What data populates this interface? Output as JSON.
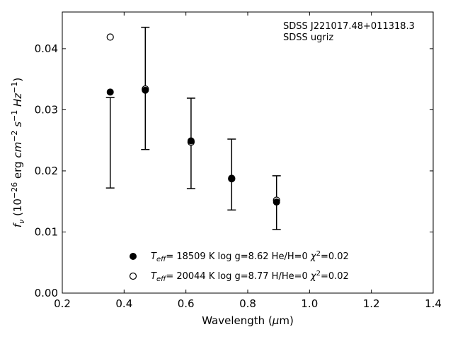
{
  "chart_data": {
    "type": "scatter",
    "xlabel": "Wavelength (μm)",
    "ylabel": "fν (10⁻²⁶ erg cm⁻² s⁻¹ Hz⁻¹)",
    "xlim": [
      0.2,
      1.4
    ],
    "ylim": [
      0.0,
      0.046
    ],
    "x_ticks": [
      "0.2",
      "0.4",
      "0.6",
      "0.8",
      "1.0",
      "1.2",
      "1.4"
    ],
    "y_ticks": [
      "0.00",
      "0.01",
      "0.02",
      "0.03",
      "0.04"
    ],
    "annotation": [
      "SDSS J221017.48+011318.3",
      "SDSS ugriz"
    ],
    "observed": {
      "x": [
        0.3551,
        0.4686,
        0.6166,
        0.748,
        0.8932
      ],
      "y": [
        0.0246,
        0.0335,
        0.0245,
        0.0194,
        0.0148
      ],
      "yerr": [
        0.0074,
        0.01,
        0.0074,
        0.0058,
        0.0044
      ]
    },
    "series": [
      {
        "name": "T_eff= 18509 K  log g=8.62  He/H=0  χ²=0.02",
        "marker": "filled-circle",
        "x": [
          0.3551,
          0.4686,
          0.6166,
          0.748,
          0.8932
        ],
        "y": [
          0.0329,
          0.0332,
          0.0249,
          0.0188,
          0.0149
        ]
      },
      {
        "name": "T_eff= 20044 K  log g=8.77  H/He=0  χ²=0.02",
        "marker": "open-circle",
        "x": [
          0.3551,
          0.4686,
          0.6166,
          0.748,
          0.8932
        ],
        "y": [
          0.0419,
          0.0334,
          0.0247,
          0.0187,
          0.0152
        ]
      }
    ],
    "legend_position": "bottom-center",
    "grid": false
  }
}
